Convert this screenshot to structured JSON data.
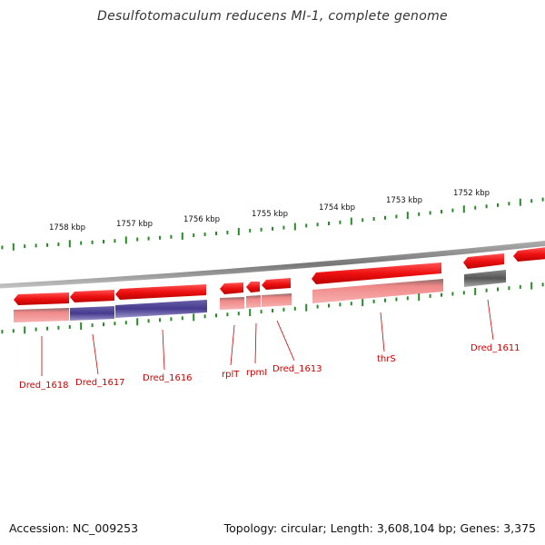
{
  "title": "Desulfotomaculum reducens MI-1, complete genome",
  "footer": {
    "accession": "Accession: NC_009253",
    "topology": "Topology: circular; Length: 3,608,104 bp; Genes: 3,375"
  },
  "scale_ticks": [
    "1758 kbp",
    "1757 kbp",
    "1756 kbp",
    "1755 kbp",
    "1754 kbp",
    "1753 kbp",
    "1752 kbp"
  ],
  "genes": [
    {
      "label": "Dred_1618",
      "strand": "reverse",
      "type": "CDS"
    },
    {
      "label": "Dred_1617",
      "strand": "reverse",
      "type": "CDS"
    },
    {
      "label": "Dred_1616",
      "strand": "reverse",
      "type": "CDS"
    },
    {
      "label": "rplT",
      "strand": "reverse",
      "type": "CDS"
    },
    {
      "label": "rpmI",
      "strand": "reverse",
      "type": "CDS"
    },
    {
      "label": "Dred_1613",
      "strand": "reverse",
      "type": "CDS"
    },
    {
      "label": "thrS",
      "strand": "reverse",
      "type": "CDS"
    },
    {
      "label": "Dred_1611",
      "strand": "reverse",
      "type": "CDS"
    }
  ],
  "colors": {
    "gene_arrow": "#ee1111",
    "product_pink": "#f08888",
    "product_blue": "#453a90",
    "product_grey": "#555555",
    "backbone": "#8c8c8c",
    "ticks": "#2a8a2a",
    "label": "#cc0000"
  }
}
